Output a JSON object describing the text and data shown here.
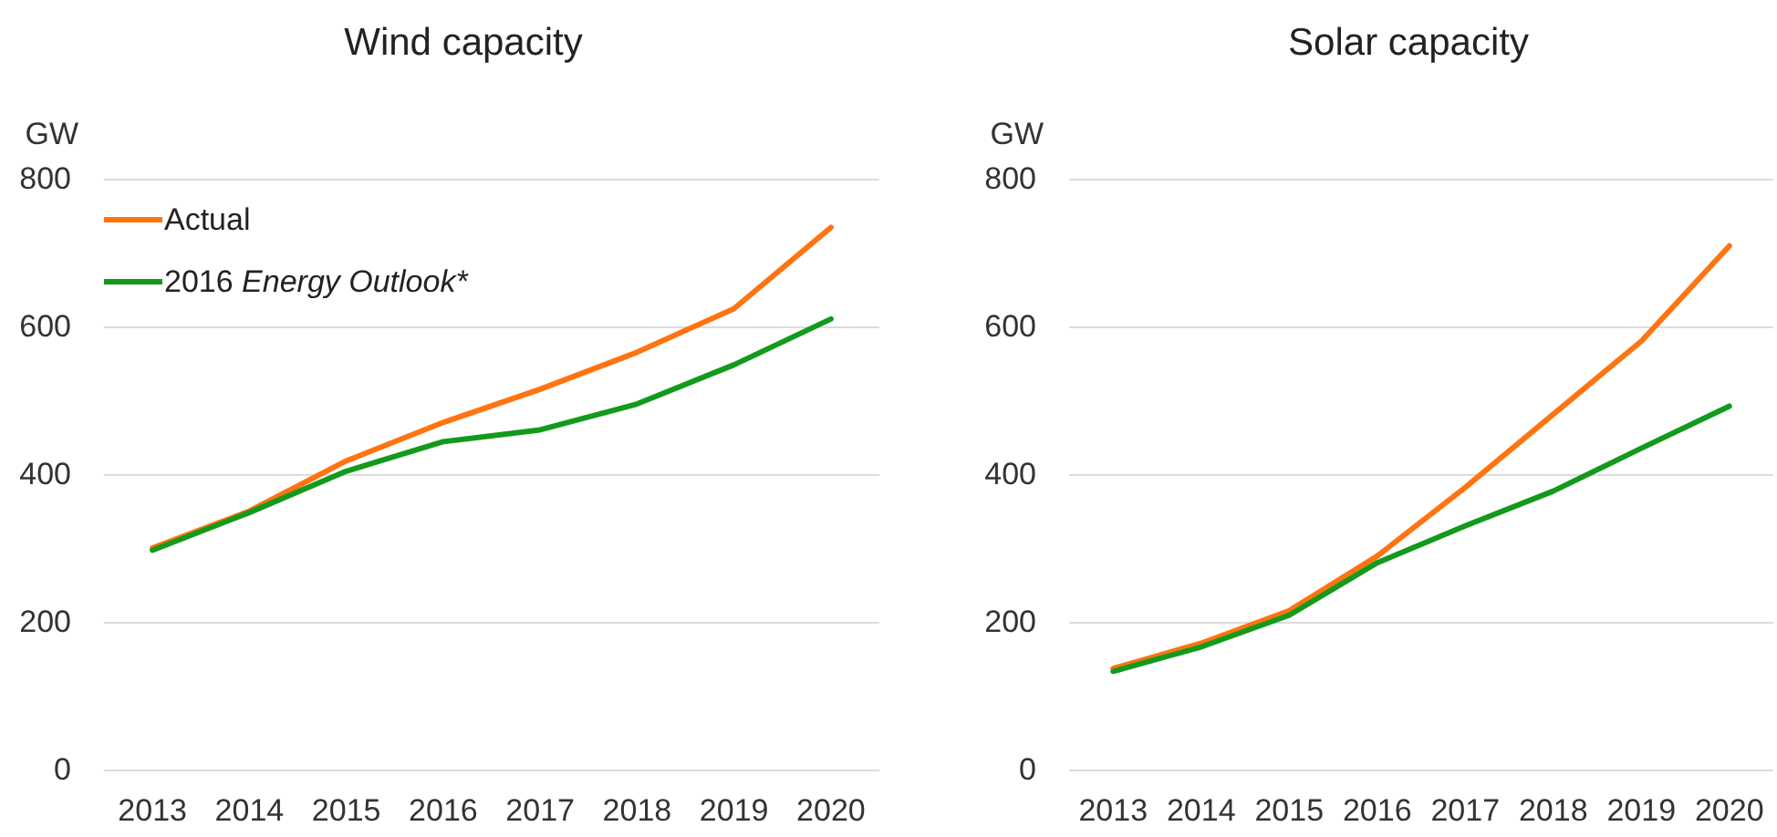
{
  "chart_data": [
    {
      "type": "line",
      "title": "Wind capacity",
      "ylabel": "GW",
      "categories": [
        "2013",
        "2014",
        "2015",
        "2016",
        "2017",
        "2018",
        "2019",
        "2020"
      ],
      "series": [
        {
          "name": "Actual",
          "color": "#ff7410",
          "values": [
            300,
            350,
            418,
            470,
            515,
            565,
            624,
            734
          ]
        },
        {
          "name": "2016 Energy Outlook*",
          "color": "#139a1c",
          "values": [
            297,
            348,
            404,
            444,
            460,
            495,
            548,
            610
          ]
        }
      ],
      "ylim": [
        0,
        800
      ],
      "yticks": [
        0,
        200,
        400,
        600,
        800
      ],
      "grid": "y",
      "legend": "top left",
      "marker": "none"
    },
    {
      "type": "line",
      "title": "Solar capacity",
      "ylabel": "GW",
      "categories": [
        "2013",
        "2014",
        "2015",
        "2016",
        "2017",
        "2018",
        "2019",
        "2020"
      ],
      "series": [
        {
          "color": "#ff7410",
          "values": [
            137,
            171,
            215,
            289,
            382,
            481,
            580,
            709
          ]
        },
        {
          "color": "#139a1c",
          "values": [
            133,
            166,
            209,
            280,
            330,
            377,
            435,
            492
          ]
        }
      ],
      "ylim": [
        0,
        800
      ],
      "yticks": [
        0,
        200,
        400,
        600,
        800
      ],
      "grid": "y",
      "legend": false,
      "marker": "none"
    }
  ]
}
